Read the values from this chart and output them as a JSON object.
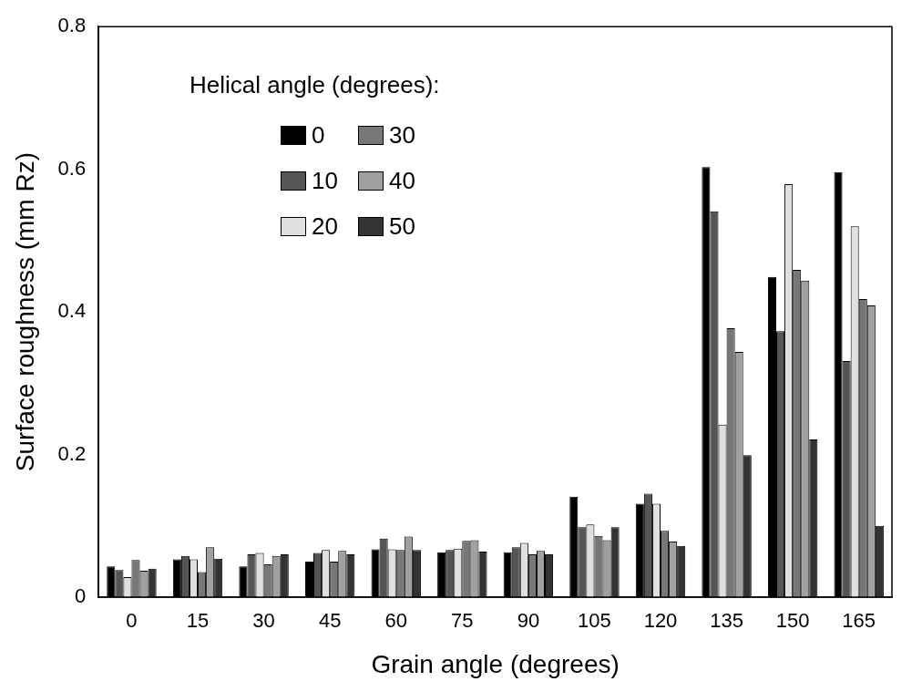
{
  "chart_data": {
    "type": "bar",
    "xlabel": "Grain angle (degrees)",
    "ylabel": "Surface roughness (mm Rz)",
    "legend_title": "Helical angle (degrees):",
    "legend": "top left",
    "categories": [
      "0",
      "15",
      "30",
      "45",
      "60",
      "75",
      "90",
      "105",
      "120",
      "135",
      "150",
      "165"
    ],
    "ylim": [
      0,
      0.8
    ],
    "yticks": [
      0,
      0.2,
      0.4,
      0.6,
      0.8
    ],
    "grid": false,
    "series": [
      {
        "name": "0",
        "color": "#000000",
        "values": [
          0.043,
          0.053,
          0.043,
          0.05,
          0.067,
          0.063,
          0.063,
          0.141,
          0.131,
          0.603,
          0.449,
          0.596
        ]
      },
      {
        "name": "10",
        "color": "#555555",
        "values": [
          0.038,
          0.058,
          0.06,
          0.062,
          0.082,
          0.066,
          0.07,
          0.098,
          0.145,
          0.541,
          0.373,
          0.331
        ]
      },
      {
        "name": "20",
        "color": "#e0e0e0",
        "values": [
          0.028,
          0.053,
          0.062,
          0.066,
          0.067,
          0.068,
          0.076,
          0.102,
          0.131,
          0.242,
          0.579,
          0.52
        ]
      },
      {
        "name": "30",
        "color": "#777777",
        "values": [
          0.052,
          0.035,
          0.046,
          0.05,
          0.066,
          0.079,
          0.06,
          0.086,
          0.093,
          0.377,
          0.459,
          0.418
        ]
      },
      {
        "name": "40",
        "color": "#a0a0a0",
        "values": [
          0.037,
          0.07,
          0.058,
          0.065,
          0.085,
          0.08,
          0.065,
          0.08,
          0.078,
          0.344,
          0.444,
          0.409
        ]
      },
      {
        "name": "50",
        "color": "#333333",
        "values": [
          0.04,
          0.054,
          0.06,
          0.06,
          0.066,
          0.064,
          0.06,
          0.098,
          0.072,
          0.199,
          0.221,
          0.1
        ]
      }
    ]
  }
}
